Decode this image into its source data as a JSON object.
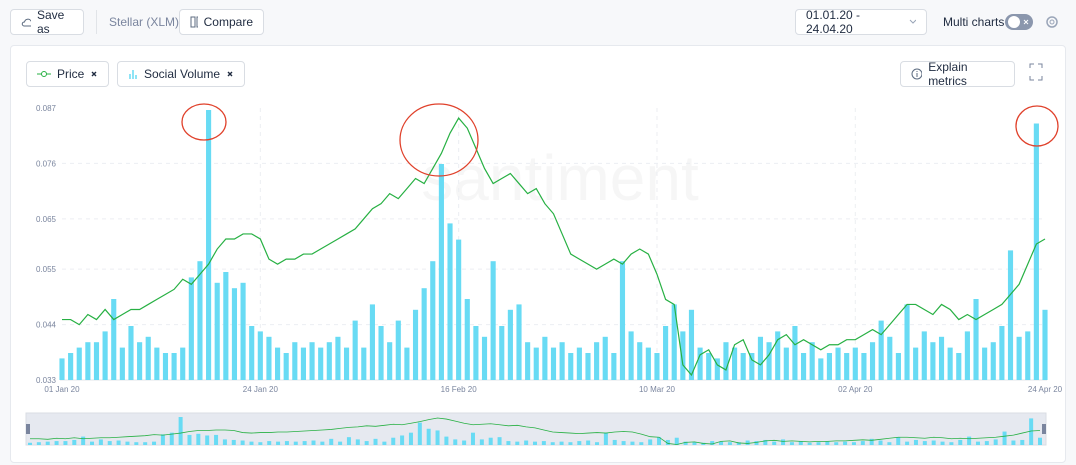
{
  "toolbar": {
    "save": "Save as",
    "asset": "Stellar (XLM)",
    "compare": "Compare",
    "date_range": "01.01.20 - 24.04.20",
    "multi_charts": "Multi charts"
  },
  "explain": "Explain metrics",
  "watermark": "santiment",
  "chart_data": {
    "type": "combo",
    "ylim": [
      0.033,
      0.087
    ],
    "yticks": [
      0.033,
      0.044,
      0.055,
      0.065,
      0.076,
      0.087
    ],
    "xlim": [
      0,
      114
    ],
    "xticks": [
      {
        "value": 0,
        "label": "01 Jan 20"
      },
      {
        "value": 23,
        "label": "24 Jan 20"
      },
      {
        "value": 46,
        "label": "16 Feb 20"
      },
      {
        "value": 69,
        "label": "10 Mar 20"
      },
      {
        "value": 92,
        "label": "02 Apr 20"
      },
      {
        "value": 114,
        "label": "24 Apr 20"
      }
    ],
    "grid": true,
    "series": [
      {
        "name": "Price",
        "color": "#27b043",
        "kind": "line",
        "values": [
          0.045,
          0.045,
          0.044,
          0.046,
          0.045,
          0.047,
          0.045,
          0.046,
          0.047,
          0.047,
          0.048,
          0.049,
          0.05,
          0.051,
          0.053,
          0.052,
          0.054,
          0.056,
          0.059,
          0.061,
          0.061,
          0.062,
          0.062,
          0.061,
          0.057,
          0.056,
          0.057,
          0.057,
          0.058,
          0.058,
          0.059,
          0.06,
          0.061,
          0.062,
          0.063,
          0.065,
          0.067,
          0.068,
          0.07,
          0.069,
          0.071,
          0.073,
          0.072,
          0.075,
          0.078,
          0.082,
          0.085,
          0.083,
          0.079,
          0.075,
          0.072,
          0.073,
          0.074,
          0.072,
          0.07,
          0.071,
          0.068,
          0.066,
          0.062,
          0.058,
          0.057,
          0.056,
          0.055,
          0.056,
          0.057,
          0.056,
          0.058,
          0.059,
          0.058,
          0.054,
          0.049,
          0.048,
          0.036,
          0.034,
          0.038,
          0.039,
          0.036,
          0.035,
          0.04,
          0.041,
          0.037,
          0.036,
          0.038,
          0.041,
          0.042,
          0.04,
          0.041,
          0.04,
          0.039,
          0.04,
          0.04,
          0.041,
          0.041,
          0.042,
          0.043,
          0.042,
          0.044,
          0.046,
          0.048,
          0.048,
          0.047,
          0.046,
          0.048,
          0.047,
          0.045,
          0.046,
          0.045,
          0.046,
          0.047,
          0.048,
          0.05,
          0.052,
          0.056,
          0.06,
          0.061
        ]
      },
      {
        "name": "Social Volume",
        "color": "#68dbf4",
        "kind": "bar",
        "values": [
          8,
          10,
          12,
          14,
          14,
          18,
          30,
          12,
          20,
          14,
          16,
          12,
          10,
          10,
          12,
          38,
          44,
          100,
          36,
          40,
          34,
          36,
          20,
          18,
          16,
          12,
          10,
          14,
          12,
          14,
          12,
          14,
          16,
          12,
          22,
          12,
          28,
          20,
          14,
          22,
          12,
          26,
          34,
          44,
          80,
          58,
          52,
          30,
          20,
          16,
          44,
          20,
          26,
          28,
          14,
          12,
          16,
          12,
          14,
          10,
          12,
          10,
          14,
          16,
          10,
          44,
          18,
          14,
          12,
          10,
          20,
          28,
          18,
          26,
          12,
          10,
          8,
          14,
          12,
          10,
          10,
          16,
          14,
          18,
          12,
          20,
          10,
          14,
          8,
          10,
          12,
          10,
          12,
          10,
          14,
          22,
          16,
          10,
          28,
          12,
          18,
          14,
          16,
          12,
          10,
          18,
          30,
          12,
          14,
          20,
          48,
          16,
          18,
          95,
          26
        ]
      }
    ]
  }
}
